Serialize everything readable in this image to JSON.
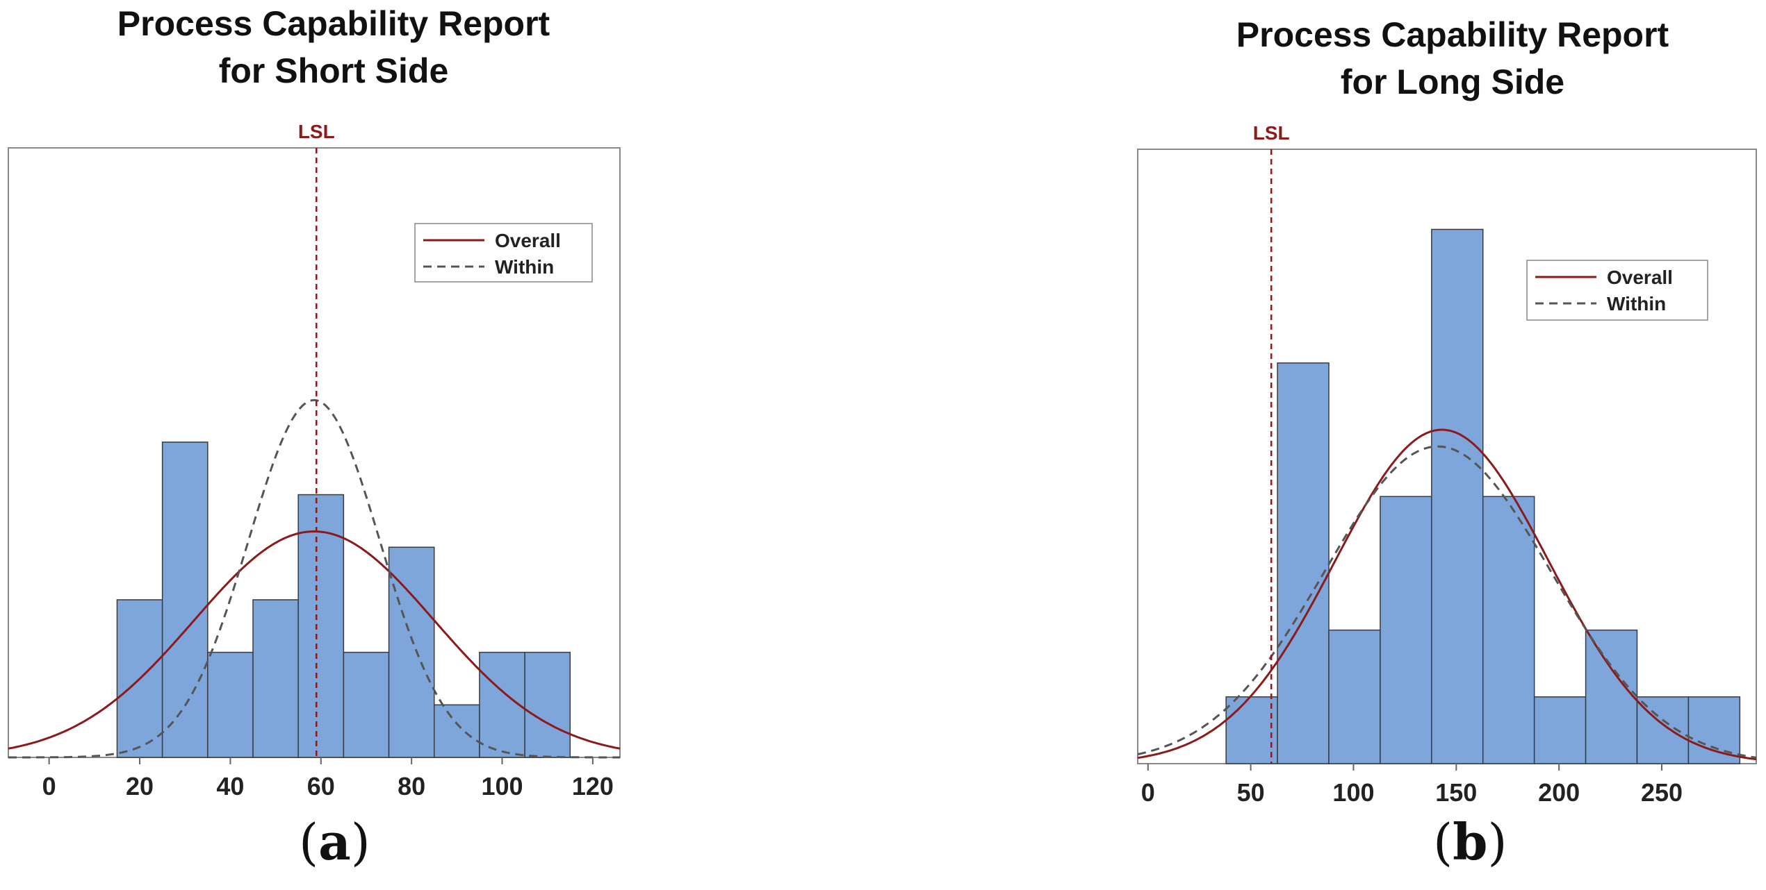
{
  "colors": {
    "bar_fill": "#7ea6da",
    "bar_stroke": "#3a3a3a",
    "overall": "#8b1a1a",
    "within": "#555555",
    "lsl": "#8b1a1a"
  },
  "captions": {
    "a_label": "a",
    "b_label": "b"
  },
  "chart_data": [
    {
      "type": "bar",
      "title_line1": "Process Capability Report",
      "title_line2": "for Short Side",
      "xlim": [
        -9,
        126
      ],
      "ylim": [
        0,
        11.6
      ],
      "xticks": [
        0,
        20,
        40,
        60,
        80,
        100,
        120
      ],
      "bins": [
        {
          "from": 15,
          "to": 25,
          "count": 3
        },
        {
          "from": 25,
          "to": 35,
          "count": 6
        },
        {
          "from": 35,
          "to": 45,
          "count": 2
        },
        {
          "from": 45,
          "to": 55,
          "count": 3
        },
        {
          "from": 55,
          "to": 65,
          "count": 5
        },
        {
          "from": 65,
          "to": 75,
          "count": 2
        },
        {
          "from": 75,
          "to": 85,
          "count": 4
        },
        {
          "from": 85,
          "to": 95,
          "count": 1
        },
        {
          "from": 95,
          "to": 105,
          "count": 2
        },
        {
          "from": 105,
          "to": 115,
          "count": 2
        }
      ],
      "lsl": {
        "label": "LSL",
        "value": 59
      },
      "curves": [
        {
          "name": "Overall",
          "style": "solid",
          "mean": 58.5,
          "sd": 26.5,
          "peak": 4.3
        },
        {
          "name": "Within",
          "style": "dashed",
          "mean": 58.5,
          "sd": 14.5,
          "peak": 6.8
        }
      ],
      "legend": [
        "Overall",
        "Within"
      ],
      "legend_position": "top-right"
    },
    {
      "type": "bar",
      "title_line1": "Process Capability Report",
      "title_line2": "for Long Side",
      "xlim": [
        -5,
        296
      ],
      "ylim": [
        0,
        9.2
      ],
      "xticks": [
        0,
        50,
        100,
        150,
        200,
        250
      ],
      "bins": [
        {
          "from": 38,
          "to": 63,
          "count": 1
        },
        {
          "from": 63,
          "to": 88,
          "count": 6
        },
        {
          "from": 88,
          "to": 113,
          "count": 2
        },
        {
          "from": 113,
          "to": 138,
          "count": 4
        },
        {
          "from": 138,
          "to": 163,
          "count": 8
        },
        {
          "from": 163,
          "to": 188,
          "count": 4
        },
        {
          "from": 188,
          "to": 213,
          "count": 1
        },
        {
          "from": 213,
          "to": 238,
          "count": 2
        },
        {
          "from": 238,
          "to": 263,
          "count": 1
        },
        {
          "from": 263,
          "to": 288,
          "count": 1
        }
      ],
      "lsl": {
        "label": "LSL",
        "value": 60
      },
      "curves": [
        {
          "name": "Overall",
          "style": "solid",
          "mean": 143,
          "sd": 52,
          "peak": 5.0
        },
        {
          "name": "Within",
          "style": "dashed",
          "mean": 141,
          "sd": 55,
          "peak": 4.75
        }
      ],
      "legend": [
        "Overall",
        "Within"
      ],
      "legend_position": "top-right"
    }
  ]
}
